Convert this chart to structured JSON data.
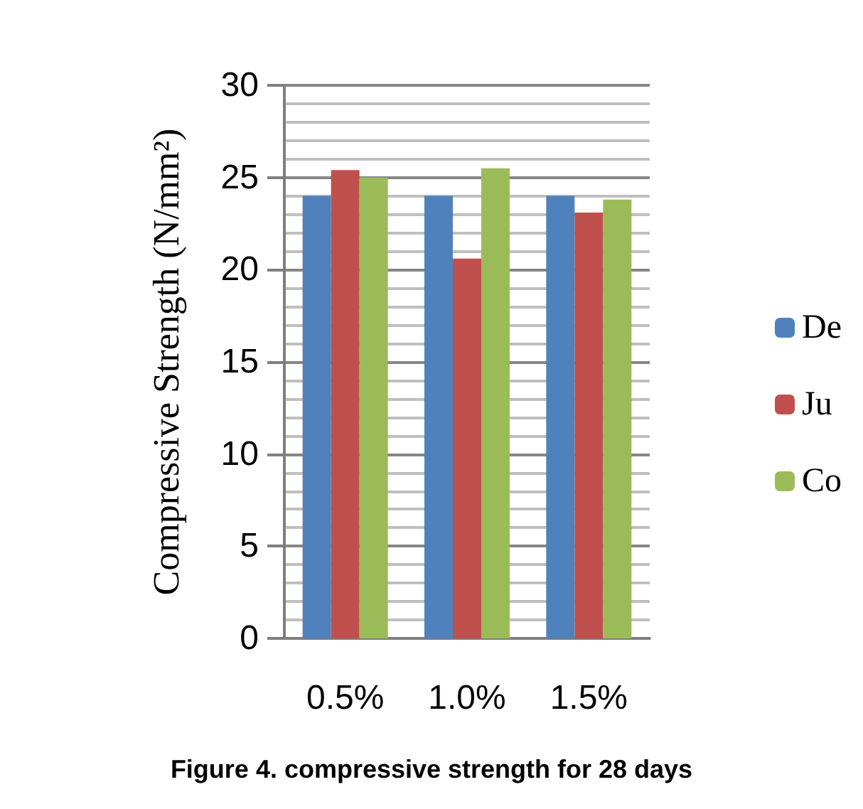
{
  "chart_data": {
    "type": "bar",
    "title": "Figure 4. compressive strength for 28 days",
    "ylabel": "Compressive Strength (N/mm²)",
    "categories": [
      "0.5%",
      "1.0%",
      "1.5%"
    ],
    "series": [
      {
        "name": "De",
        "color": "#4f81bd",
        "values": [
          24,
          24,
          24
        ]
      },
      {
        "name": "Ju",
        "color": "#c0504d",
        "values": [
          25.4,
          20.6,
          23.1
        ]
      },
      {
        "name": "Co",
        "color": "#9bbb59",
        "values": [
          25,
          25.5,
          23.8
        ]
      }
    ],
    "ylim": [
      0,
      30
    ],
    "yticks": [
      0,
      5,
      10,
      15,
      20,
      25,
      30
    ],
    "grid": "y",
    "legend": "right"
  }
}
